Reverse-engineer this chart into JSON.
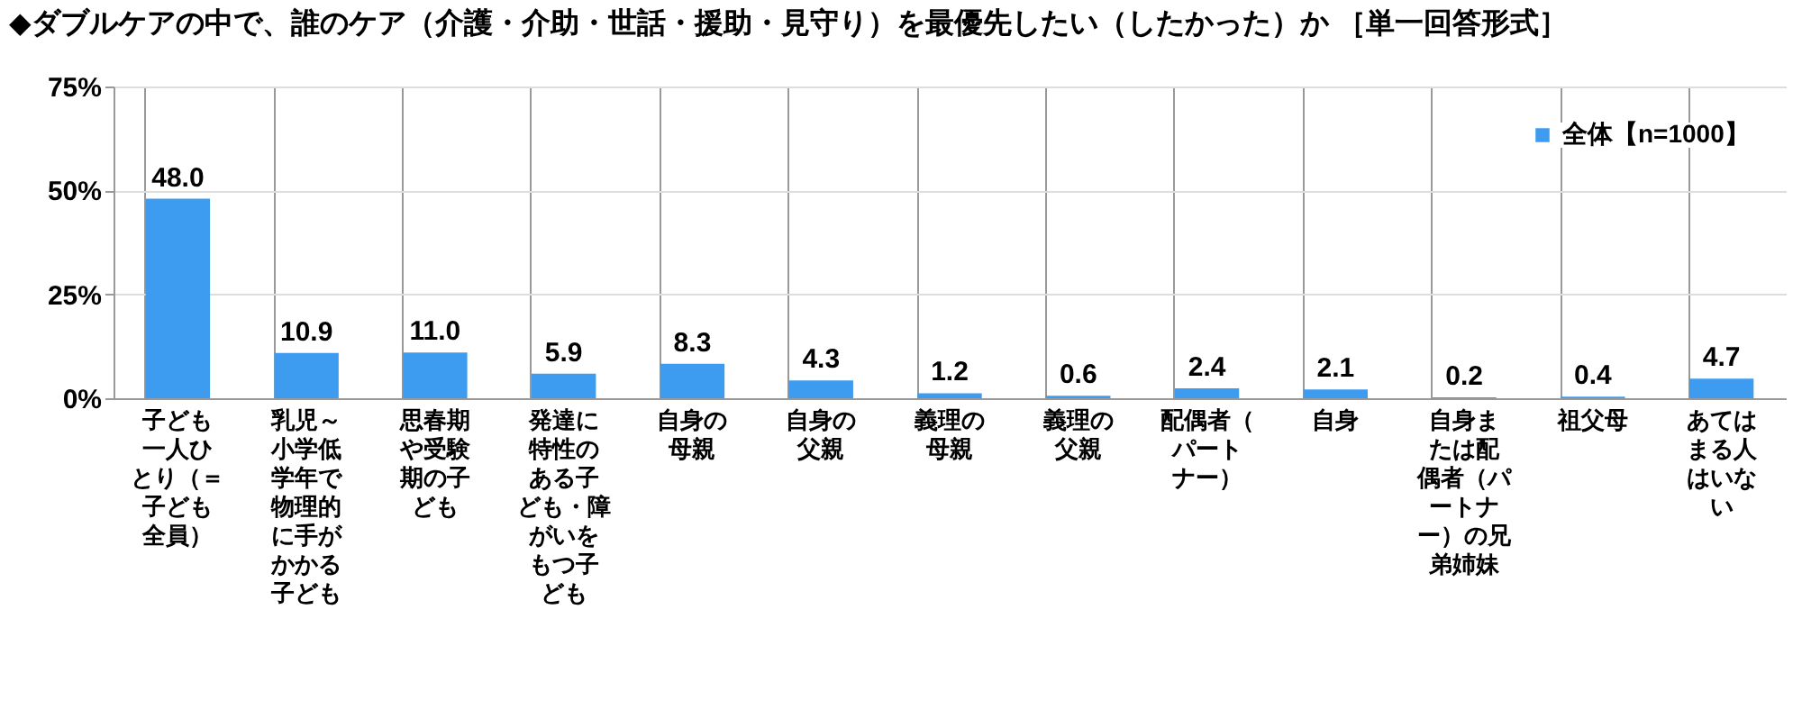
{
  "chart_data": {
    "type": "bar",
    "title": "◆ダブルケアの中で、誰のケア（介護・介助・世話・援助・見守り）を最優先したい（したかった）か ［単一回答形式］",
    "categories": [
      "子ども一人ひとり（＝子ども全員）",
      "乳児～小学低学年で物理的に手がかかる子ども",
      "思春期や受験期の子ども",
      "発達に特性のある子ども・障がいをもつ子ども",
      "自身の母親",
      "自身の父親",
      "義理の母親",
      "義理の父親",
      "配偶者（パートナー）",
      "自身",
      "自身または配偶者（パートナー）の兄弟姉妹",
      "祖父母",
      "あてはまる人はいない"
    ],
    "series": [
      {
        "name": "全体【n=1000】",
        "color": "#3d9cf0",
        "values": [
          48.0,
          10.9,
          11.0,
          5.9,
          8.3,
          4.3,
          1.2,
          0.6,
          2.4,
          2.1,
          0.2,
          0.4,
          4.7
        ],
        "value_labels": [
          "48.0",
          "10.9",
          "11.0",
          "5.9",
          "8.3",
          "4.3",
          "1.2",
          "0.6",
          "2.4",
          "2.1",
          "0.2",
          "0.4",
          "4.7"
        ]
      }
    ],
    "ylim": [
      0,
      75
    ],
    "yticks": [
      {
        "value": 0,
        "label": "0%"
      },
      {
        "value": 25,
        "label": "25%"
      },
      {
        "value": 50,
        "label": "50%"
      },
      {
        "value": 75,
        "label": "75%"
      }
    ],
    "grid": true,
    "legend": "top right"
  }
}
